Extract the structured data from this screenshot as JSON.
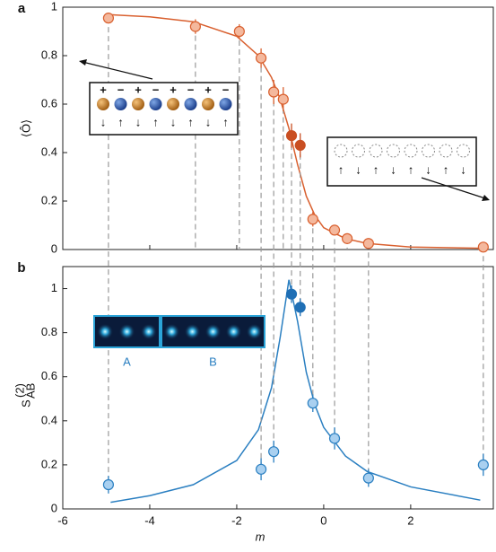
{
  "chart_data": [
    {
      "type": "scatter",
      "label": "a",
      "ylabel": "⟨Ô⟩",
      "xlim": [
        -6,
        3.9
      ],
      "ylim": [
        0,
        1
      ],
      "xticks": [
        -6,
        -4,
        -2,
        0,
        2
      ],
      "yticks": [
        0,
        0.2,
        0.4,
        0.6,
        0.8,
        1
      ],
      "xtick_labels": false,
      "series": [
        {
          "color": "#d9602f",
          "fill": "#f4b89d",
          "x": [
            -4.95,
            -2.95,
            -1.94,
            -1.44,
            -1.15,
            -0.93,
            -0.25,
            0.25,
            0.54,
            1.03,
            3.67
          ],
          "values": [
            0.955,
            0.92,
            0.9,
            0.79,
            0.65,
            0.62,
            0.125,
            0.08,
            0.045,
            0.025,
            0.01
          ],
          "errors": [
            0.02,
            0.03,
            0.03,
            0.04,
            0.05,
            0.05,
            0.03,
            0.02,
            0.02,
            0.02,
            0.01
          ]
        },
        {
          "color": "#c94f22",
          "fill": "#c94f22",
          "x": [
            -0.74,
            -0.54
          ],
          "values": [
            0.47,
            0.43
          ],
          "errors": [
            0.05,
            0.05
          ]
        }
      ],
      "fit": {
        "color": "#d9602f",
        "x": [
          -5,
          -4,
          -3,
          -2,
          -1.5,
          -1.2,
          -1,
          -0.8,
          -0.6,
          -0.4,
          -0.2,
          0,
          0.5,
          1,
          2,
          3.7
        ],
        "values": [
          0.97,
          0.96,
          0.94,
          0.88,
          0.8,
          0.71,
          0.62,
          0.5,
          0.35,
          0.22,
          0.14,
          0.09,
          0.045,
          0.025,
          0.01,
          0.005
        ]
      },
      "inset_signs": [
        "+",
        "−",
        "+",
        "−",
        "+",
        "−",
        "+",
        "−"
      ],
      "inset_spins": [
        "↓",
        "↑",
        "↓",
        "↑",
        "↓",
        "↑",
        "↓",
        "↑"
      ],
      "inset2_spins": [
        "↑",
        "↓",
        "↑",
        "↓",
        "↑",
        "↓",
        "↑",
        "↓"
      ]
    },
    {
      "type": "scatter",
      "label": "b",
      "ylabel": {
        "main": "S",
        "sub": "AB",
        "sup": "(2)"
      },
      "xlabel": "m",
      "xlim": [
        -6,
        3.9
      ],
      "ylim": [
        0,
        1.1
      ],
      "xticks": [
        -6,
        -4,
        -2,
        0,
        2
      ],
      "yticks": [
        0,
        0.2,
        0.4,
        0.6,
        0.8,
        1
      ],
      "xtick_labels": true,
      "series": [
        {
          "color": "#2a7fc1",
          "fill": "#a9d0f0",
          "x": [
            -4.95,
            -1.44,
            -1.15,
            -0.25,
            0.25,
            1.03,
            3.67
          ],
          "values": [
            0.11,
            0.18,
            0.26,
            0.48,
            0.32,
            0.14,
            0.2
          ],
          "errors": [
            0.04,
            0.05,
            0.05,
            0.04,
            0.05,
            0.04,
            0.05
          ]
        },
        {
          "color": "#1f6fb5",
          "fill": "#1f6fb5",
          "x": [
            -0.74,
            -0.54
          ],
          "values": [
            0.975,
            0.915
          ],
          "errors": [
            0.04,
            0.04
          ]
        }
      ],
      "fit": {
        "color": "#2a7fc1",
        "x": [
          -4.9,
          -4,
          -3,
          -2,
          -1.5,
          -1.2,
          -1,
          -0.8,
          -0.6,
          -0.4,
          -0.2,
          0,
          0.5,
          1,
          2,
          3.6
        ],
        "values": [
          0.03,
          0.06,
          0.11,
          0.22,
          0.36,
          0.55,
          0.78,
          1.04,
          0.85,
          0.62,
          0.47,
          0.37,
          0.24,
          0.17,
          0.1,
          0.04
        ]
      },
      "inset_labels": [
        "A",
        "B"
      ]
    }
  ]
}
